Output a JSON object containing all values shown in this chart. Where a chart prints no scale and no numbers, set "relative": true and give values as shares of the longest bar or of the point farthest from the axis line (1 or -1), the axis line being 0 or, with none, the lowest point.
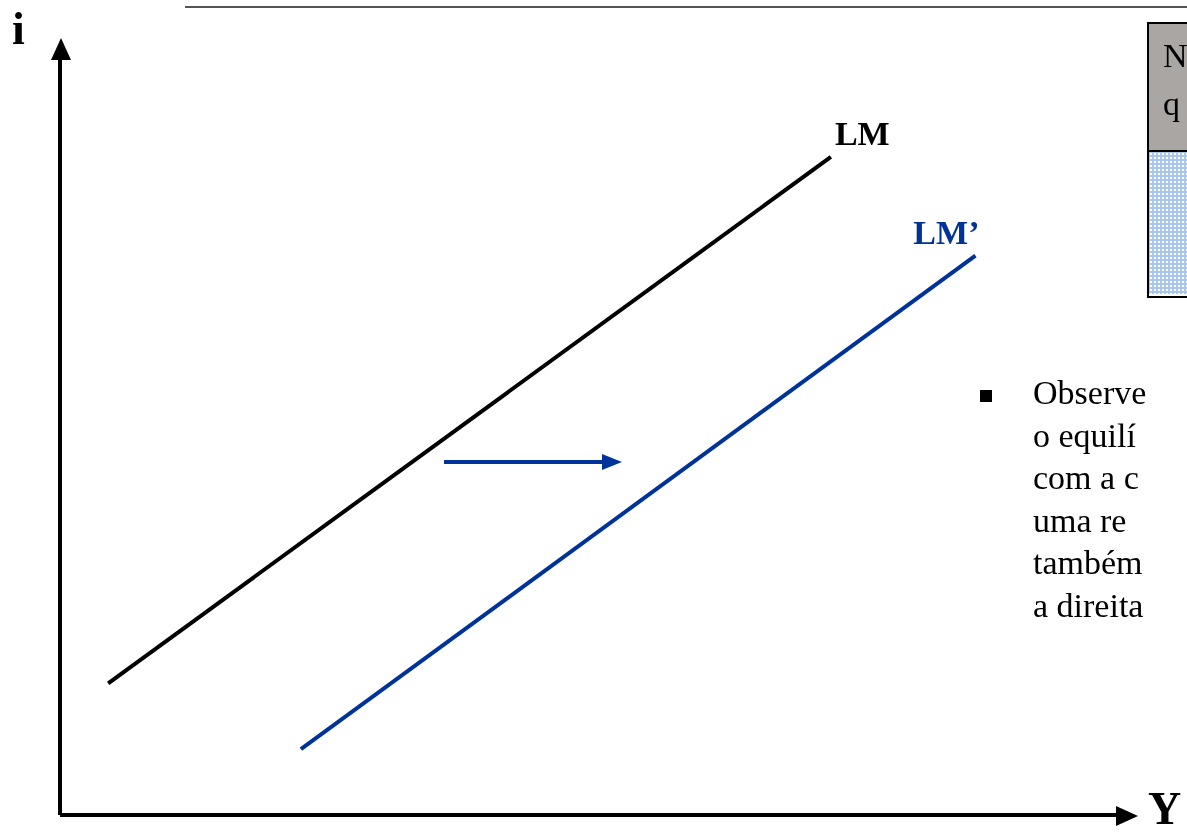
{
  "chart_data": {
    "type": "line",
    "relative": true,
    "xlabel": "Y",
    "ylabel": "i",
    "marker": "none",
    "line_style": "solid",
    "categories": [
      null,
      null,
      null,
      null,
      null,
      null,
      null,
      null,
      null,
      null,
      null,
      null,
      null,
      null,
      null,
      null,
      null,
      null,
      null,
      null,
      null,
      null,
      null
    ],
    "series": [
      {
        "name": "LM",
        "color": "#000000",
        "values": [
          null,
          0.2,
          null,
          null,
          null,
          null,
          null,
          null,
          null,
          null,
          null,
          null,
          null,
          null,
          null,
          null,
          1,
          null,
          null,
          null,
          null,
          null,
          null
        ]
      },
      {
        "name": "LM’",
        "color": "#003399",
        "values": [
          null,
          null,
          null,
          null,
          null,
          0.1,
          null,
          null,
          null,
          null,
          null,
          null,
          null,
          null,
          null,
          null,
          null,
          null,
          null,
          0.85,
          null,
          null,
          null
        ]
      }
    ],
    "annotations": [
      "N",
      "q",
      "Observe",
      "o equilí",
      "com a c",
      "uma re",
      "também",
      "a direita"
    ]
  }
}
